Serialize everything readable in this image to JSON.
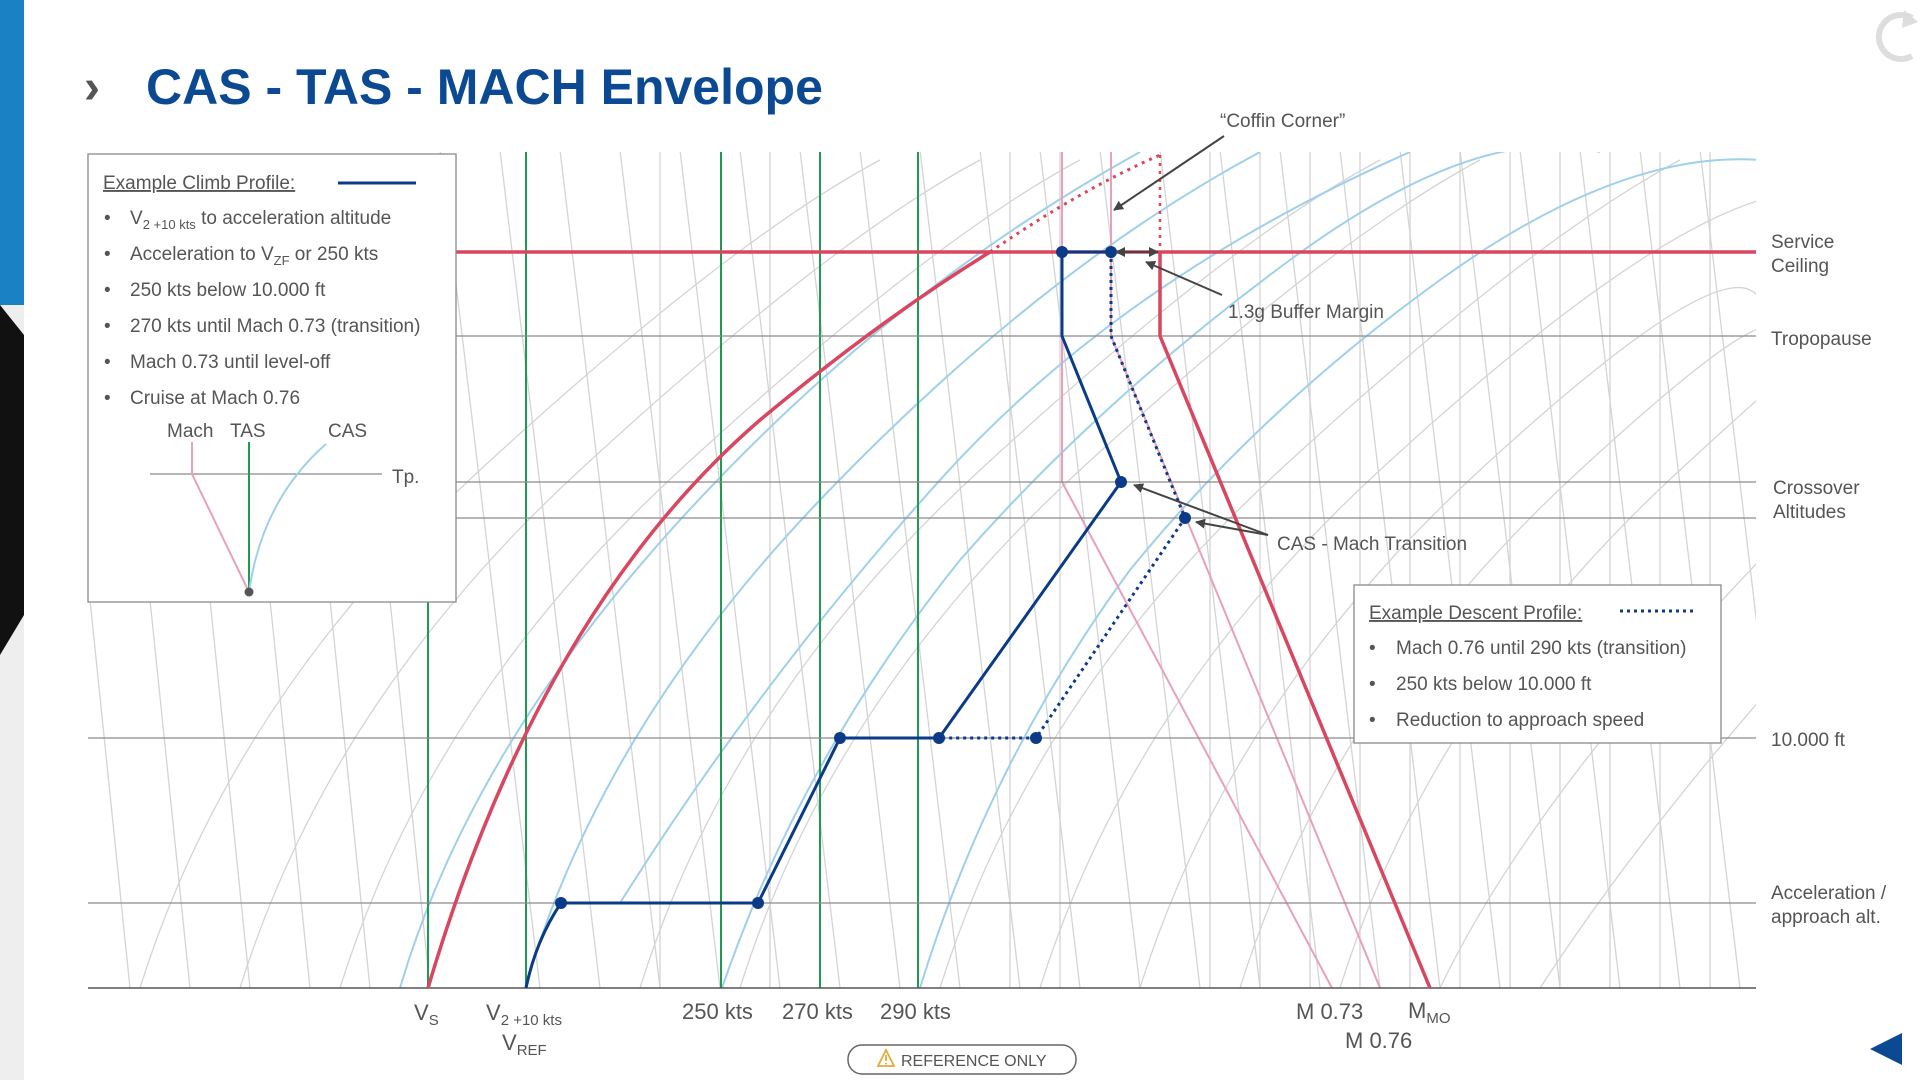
{
  "slide": {
    "title": "CAS - TAS - MACH Envelope",
    "reference_label": "REFERENCE ONLY",
    "colors": {
      "title": "#0b4a93",
      "accent_bar": "#1a82c4",
      "limit_red": "#d9465f",
      "mach_pink": "#e8a0bb",
      "cas_blue": "#9fd0ea",
      "tas_green": "#1f9a50",
      "profile_navy": "#0b3b87",
      "grid_gray": "#cfcfcf",
      "line_gray": "#8a8a8a"
    }
  },
  "diagram": {
    "altitude_labels": {
      "service_ceiling_1": "Service",
      "service_ceiling_2": "Ceiling",
      "tropopause": "Tropopause",
      "crossover_1": "Crossover",
      "crossover_2": "Altitudes",
      "ten_thousand": "10.000 ft",
      "accel_1": "Acceleration /",
      "accel_2": "approach alt."
    },
    "speed_labels": {
      "vs_main": "V",
      "vs_sub": "S",
      "v2_main": "V",
      "v2_sub": "2 +10 kts",
      "vref_main": "V",
      "vref_sub": "REF",
      "cas250": "250 kts",
      "cas270": "270 kts",
      "cas290": "290 kts",
      "m073": "M 0.73",
      "m076": "M 0.76",
      "mmo_main": "M",
      "mmo_sub": "MO"
    },
    "annotations": {
      "coffin_corner": "“Coffin Corner”",
      "buffer_margin": "1.3g Buffer Margin",
      "cas_mach_transition": "CAS - Mach Transition"
    },
    "climb_legend": {
      "title": "Example Climb Profile:",
      "item1_a": "V",
      "item1_sub": "2 +10 kts",
      "item1_b": " to acceleration altitude",
      "item2_a": "Acceleration to V",
      "item2_sub": "ZF",
      "item2_b": " or 250 kts",
      "item3": "250 kts below 10.000 ft",
      "item4": "270 kts until Mach 0.73 (transition)",
      "item5": "Mach 0.73 until level-off",
      "item6": "Cruise at Mach 0.76",
      "mini_mach": "Mach",
      "mini_tas": "TAS",
      "mini_cas": "CAS",
      "mini_tp": "Tp."
    },
    "descent_legend": {
      "title": "Example Descent Profile:",
      "item1": "Mach 0.76 until 290 kts (transition)",
      "item2": "250 kts below 10.000 ft",
      "item3": "Reduction to approach speed"
    }
  }
}
